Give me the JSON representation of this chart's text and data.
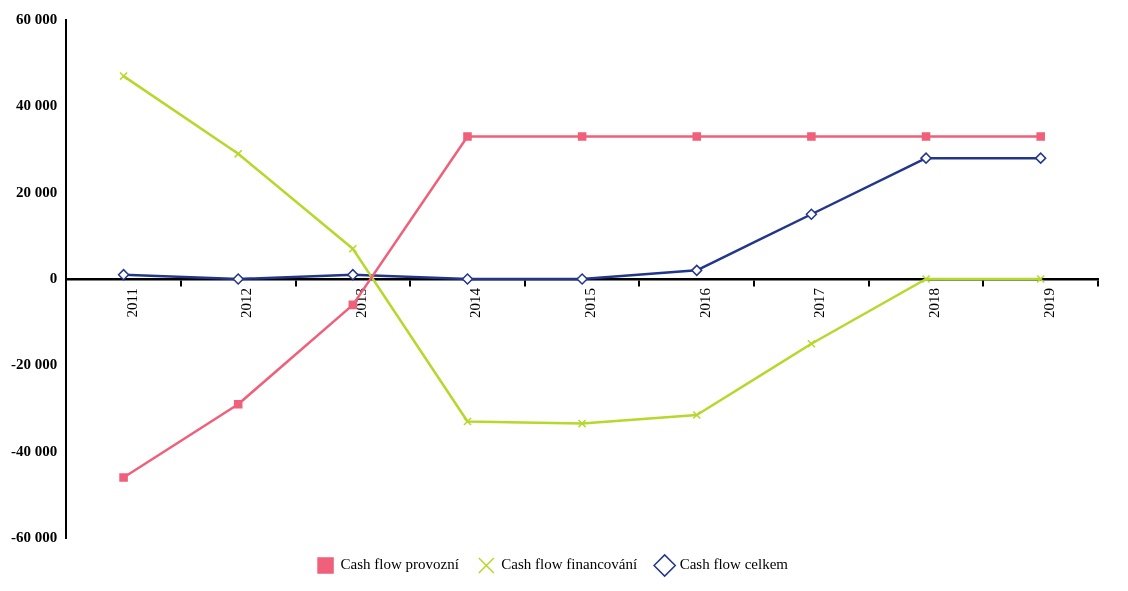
{
  "chart_data": {
    "type": "line",
    "categories": [
      "2011",
      "2012",
      "2013",
      "2014",
      "2015",
      "2016",
      "2017",
      "2018",
      "2019"
    ],
    "series": [
      {
        "name": "Cash flow provozní",
        "color": "#f0607a",
        "marker": "square",
        "values": [
          -46000,
          -29000,
          -6000,
          33000,
          33000,
          33000,
          33000,
          33000,
          33000
        ]
      },
      {
        "name": "Cash flow financování",
        "color": "#b5d82a",
        "marker": "cross",
        "values": [
          47000,
          29000,
          7000,
          -33000,
          -33500,
          -31500,
          -15000,
          0,
          0
        ]
      },
      {
        "name": "Cash flow celkem",
        "color": "#22368c",
        "marker": "diamond",
        "values": [
          1000,
          0,
          1000,
          0,
          0,
          2000,
          15000,
          28000,
          28000
        ]
      }
    ],
    "ylim": [
      -60000,
      60000
    ],
    "yticks": [
      {
        "value": -60000,
        "label": "-60 000"
      },
      {
        "value": -40000,
        "label": "-40 000"
      },
      {
        "value": -20000,
        "label": "-20 000"
      },
      {
        "value": 0,
        "label": "0"
      },
      {
        "value": 20000,
        "label": "20 000"
      },
      {
        "value": 40000,
        "label": "40 000"
      },
      {
        "value": 60000,
        "label": "60 000"
      }
    ],
    "legend": "bottom"
  }
}
